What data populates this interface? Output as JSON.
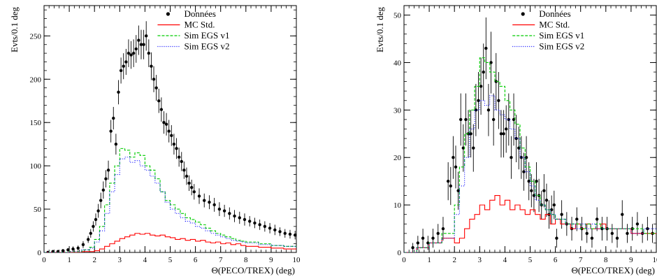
{
  "chart_data": [
    {
      "type": "line",
      "xlabel": "Θ(PECO/TREX) (deg)",
      "ylabel": "Evts/0.1 deg",
      "xlim": [
        0,
        10
      ],
      "ylim": [
        0,
        285
      ],
      "xticks": [
        0,
        1,
        2,
        3,
        4,
        5,
        6,
        7,
        8,
        9,
        10
      ],
      "yticks": [
        0,
        50,
        100,
        150,
        200,
        250
      ],
      "legend": [
        "Données",
        "MC Std.",
        "Sim EGS v1",
        "Sim EGS v2"
      ],
      "legend_position": "top-right",
      "series": [
        {
          "name": "Données",
          "style": "points",
          "x": [
            0.15,
            0.35,
            0.55,
            0.75,
            0.95,
            1.15,
            1.35,
            1.55,
            1.75,
            1.85,
            1.95,
            2.05,
            2.15,
            2.25,
            2.35,
            2.45,
            2.55,
            2.65,
            2.75,
            2.85,
            2.95,
            3.05,
            3.15,
            3.25,
            3.35,
            3.45,
            3.55,
            3.65,
            3.75,
            3.85,
            3.95,
            4.05,
            4.15,
            4.25,
            4.35,
            4.45,
            4.55,
            4.65,
            4.75,
            4.85,
            4.95,
            5.05,
            5.15,
            5.25,
            5.35,
            5.45,
            5.55,
            5.65,
            5.75,
            5.85,
            5.95,
            6.15,
            6.35,
            6.55,
            6.75,
            6.95,
            7.15,
            7.35,
            7.55,
            7.75,
            7.95,
            8.15,
            8.35,
            8.55,
            8.75,
            8.95,
            9.15,
            9.35,
            9.55,
            9.75,
            9.95
          ],
          "y": [
            0,
            1,
            1,
            2,
            3,
            4,
            5,
            9,
            15,
            22,
            30,
            38,
            48,
            60,
            72,
            85,
            95,
            140,
            155,
            125,
            185,
            210,
            215,
            220,
            230,
            228,
            230,
            235,
            245,
            240,
            240,
            250,
            230,
            215,
            200,
            190,
            175,
            165,
            150,
            148,
            140,
            135,
            125,
            120,
            110,
            105,
            95,
            88,
            80,
            75,
            70,
            65,
            60,
            58,
            55,
            50,
            48,
            45,
            42,
            40,
            38,
            36,
            34,
            32,
            30,
            28,
            26,
            24,
            22,
            21,
            20
          ],
          "err": [
            1,
            1,
            1,
            2,
            2,
            3,
            3,
            4,
            4,
            5,
            6,
            7,
            8,
            9,
            10,
            10,
            11,
            13,
            13,
            12,
            14,
            15,
            15,
            15,
            16,
            16,
            16,
            16,
            17,
            17,
            17,
            17,
            16,
            16,
            15,
            15,
            14,
            14,
            13,
            13,
            13,
            12,
            12,
            12,
            11,
            11,
            10,
            10,
            9,
            9,
            9,
            9,
            8,
            8,
            8,
            8,
            7,
            7,
            7,
            7,
            7,
            6,
            6,
            6,
            6,
            6,
            6,
            5,
            5,
            5,
            5
          ]
        },
        {
          "name": "MC Std.",
          "style": "step",
          "color": "#ff0000",
          "x": [
            0,
            0.5,
            1,
            1.5,
            2,
            2.2,
            2.4,
            2.6,
            2.8,
            3,
            3.2,
            3.4,
            3.6,
            3.8,
            4,
            4.2,
            4.4,
            4.6,
            4.8,
            5,
            5.2,
            5.4,
            5.6,
            5.8,
            6,
            6.2,
            6.4,
            6.6,
            6.8,
            7,
            7.2,
            7.4,
            7.6,
            7.8,
            8,
            8.5,
            9,
            9.5,
            10
          ],
          "y": [
            0,
            0,
            0,
            1,
            2,
            4,
            7,
            10,
            13,
            16,
            18,
            20,
            22,
            21,
            22,
            20,
            19,
            20,
            18,
            17,
            15,
            16,
            14,
            15,
            13,
            14,
            12,
            11,
            12,
            10,
            11,
            9,
            10,
            8,
            7,
            6,
            5,
            4,
            4
          ]
        },
        {
          "name": "Sim EGS v1",
          "style": "step",
          "color": "#00cc00",
          "x": [
            0,
            0.5,
            1,
            1.5,
            1.8,
            2,
            2.2,
            2.4,
            2.6,
            2.8,
            3,
            3.2,
            3.4,
            3.6,
            3.8,
            4,
            4.2,
            4.4,
            4.6,
            4.8,
            5,
            5.2,
            5.4,
            5.6,
            5.8,
            6,
            6.2,
            6.4,
            6.6,
            6.8,
            7,
            7.2,
            7.4,
            7.6,
            7.8,
            8,
            8.5,
            9,
            9.5,
            10
          ],
          "y": [
            0,
            0,
            1,
            3,
            6,
            15,
            30,
            55,
            80,
            100,
            120,
            118,
            110,
            115,
            112,
            100,
            95,
            85,
            70,
            60,
            55,
            50,
            45,
            40,
            38,
            35,
            32,
            28,
            25,
            22,
            20,
            18,
            16,
            14,
            13,
            12,
            10,
            8,
            7,
            6
          ]
        },
        {
          "name": "Sim EGS v2",
          "style": "step",
          "color": "#0000ff",
          "x": [
            0,
            0.5,
            1,
            1.5,
            1.8,
            2,
            2.2,
            2.4,
            2.6,
            2.8,
            3,
            3.2,
            3.4,
            3.6,
            3.8,
            4,
            4.2,
            4.4,
            4.6,
            4.8,
            5,
            5.2,
            5.4,
            5.6,
            5.8,
            6,
            6.2,
            6.4,
            6.6,
            6.8,
            7,
            7.2,
            7.4,
            7.6,
            7.8,
            8,
            8.5,
            9,
            9.5,
            10
          ],
          "y": [
            0,
            0,
            1,
            3,
            5,
            12,
            25,
            45,
            70,
            90,
            108,
            110,
            104,
            106,
            100,
            95,
            88,
            80,
            70,
            58,
            50,
            45,
            40,
            36,
            34,
            30,
            28,
            25,
            22,
            20,
            18,
            16,
            14,
            13,
            12,
            11,
            9,
            8,
            7,
            6
          ]
        }
      ]
    },
    {
      "type": "line",
      "xlabel": "Θ(PECO/TREX) (deg)",
      "ylabel": "Evts/0.1 deg",
      "xlim": [
        0,
        10
      ],
      "ylim": [
        0,
        52
      ],
      "xticks": [
        0,
        1,
        2,
        3,
        4,
        5,
        6,
        7,
        8,
        9,
        10
      ],
      "yticks": [
        0,
        10,
        20,
        30,
        40,
        50
      ],
      "legend": [
        "Données",
        "MC Std.",
        "Sim EGS v1",
        "Sim EGS v2"
      ],
      "legend_position": "top-right",
      "series": [
        {
          "name": "Données",
          "style": "points",
          "x": [
            0.35,
            0.55,
            0.75,
            0.95,
            1.15,
            1.35,
            1.55,
            1.75,
            1.85,
            1.95,
            2.05,
            2.15,
            2.25,
            2.35,
            2.45,
            2.55,
            2.65,
            2.75,
            2.85,
            2.95,
            3.05,
            3.15,
            3.25,
            3.35,
            3.45,
            3.55,
            3.65,
            3.75,
            3.85,
            3.95,
            4.05,
            4.15,
            4.25,
            4.35,
            4.45,
            4.55,
            4.65,
            4.75,
            4.85,
            4.95,
            5.05,
            5.15,
            5.25,
            5.35,
            5.45,
            5.55,
            5.65,
            5.75,
            5.85,
            5.95,
            6.05,
            6.25,
            6.45,
            6.65,
            6.85,
            7.05,
            7.25,
            7.45,
            7.65,
            7.85,
            8.05,
            8.25,
            8.45,
            8.65,
            8.85,
            9.05,
            9.25,
            9.45,
            9.65,
            9.85
          ],
          "y": [
            1,
            2,
            3,
            2,
            3,
            4,
            5,
            15,
            14,
            20,
            18,
            13,
            28,
            22,
            28,
            25,
            25,
            22,
            30,
            32,
            35,
            38,
            43,
            30,
            40,
            28,
            36,
            32,
            25,
            25,
            26,
            28,
            20,
            28,
            24,
            22,
            20,
            17,
            20,
            15,
            13,
            12,
            15,
            12,
            10,
            13,
            11,
            8,
            9,
            10,
            3,
            8,
            6,
            5,
            7,
            5,
            4,
            3,
            7,
            5,
            5,
            4,
            3,
            8,
            4,
            5,
            6,
            4,
            5,
            4
          ],
          "err": [
            1,
            1.5,
            2,
            1.5,
            2,
            2,
            2.5,
            4,
            4,
            4.5,
            4.5,
            4,
            5.5,
            5,
            5.5,
            5,
            5,
            5,
            5.5,
            6,
            6,
            6,
            6.5,
            5.5,
            6.5,
            5.5,
            6,
            6,
            5,
            5,
            5,
            5.5,
            4.5,
            5.5,
            5,
            4.5,
            4.5,
            4,
            4.5,
            4,
            3.5,
            3.5,
            4,
            3.5,
            3,
            3.5,
            3.5,
            3,
            3,
            3,
            2,
            3,
            2.5,
            2.5,
            2.5,
            2.5,
            2,
            2,
            2.5,
            2.5,
            2.5,
            2,
            2,
            3,
            2,
            2.5,
            2.5,
            2,
            2.5,
            2
          ]
        },
        {
          "name": "MC Std.",
          "style": "step",
          "color": "#ff0000",
          "x": [
            0,
            0.5,
            1,
            1.5,
            2,
            2.2,
            2.4,
            2.6,
            2.8,
            3,
            3.2,
            3.4,
            3.6,
            3.8,
            4,
            4.2,
            4.4,
            4.6,
            4.8,
            5,
            5.2,
            5.4,
            5.6,
            5.8,
            6,
            6.2,
            6.4,
            6.6,
            6.8,
            7,
            7.2,
            7.4,
            7.6,
            7.8,
            8,
            8.5,
            9,
            9.5,
            10
          ],
          "y": [
            0,
            1,
            2,
            3,
            2,
            3,
            5,
            7,
            8,
            10,
            9,
            11,
            12,
            10,
            11,
            9,
            10,
            9,
            8,
            9,
            8,
            7,
            8,
            6,
            7,
            6,
            6,
            5,
            6,
            5,
            6,
            5,
            5,
            6,
            5,
            5,
            4,
            4,
            4
          ]
        },
        {
          "name": "Sim EGS v1",
          "style": "step",
          "color": "#00cc00",
          "x": [
            0,
            0.5,
            1,
            1.5,
            2,
            2.2,
            2.4,
            2.6,
            2.8,
            3,
            3.2,
            3.4,
            3.6,
            3.8,
            4,
            4.2,
            4.4,
            4.6,
            4.8,
            5,
            5.2,
            5.4,
            5.6,
            5.8,
            6,
            6.2,
            6.4,
            6.6,
            6.8,
            7,
            7.2,
            7.4,
            7.6,
            7.8,
            8,
            8.5,
            9,
            9.5,
            10
          ],
          "y": [
            0,
            1,
            2,
            4,
            10,
            18,
            25,
            30,
            35,
            41,
            40,
            38,
            36,
            35,
            32,
            30,
            27,
            22,
            18,
            15,
            12,
            10,
            9,
            8,
            7,
            7,
            6,
            6,
            6,
            5,
            6,
            5,
            6,
            5,
            5,
            5,
            5,
            4,
            5
          ]
        },
        {
          "name": "Sim EGS v2",
          "style": "step",
          "color": "#0000ff",
          "x": [
            0,
            0.5,
            1,
            1.5,
            2,
            2.2,
            2.4,
            2.6,
            2.8,
            3,
            3.2,
            3.4,
            3.6,
            3.8,
            4,
            4.2,
            4.4,
            4.6,
            4.8,
            5,
            5.2,
            5.4,
            5.6,
            5.8,
            6,
            6.2,
            6.4,
            6.6,
            6.8,
            7,
            7.2,
            7.4,
            7.6,
            7.8,
            8,
            8.5,
            9,
            9.5,
            10
          ],
          "y": [
            0,
            1,
            2,
            3,
            8,
            14,
            20,
            26,
            30,
            32,
            31,
            33,
            30,
            29,
            28,
            26,
            24,
            20,
            17,
            14,
            11,
            10,
            9,
            8,
            7,
            7,
            6,
            6,
            5,
            6,
            5,
            6,
            5,
            5,
            5,
            5,
            4,
            5,
            4
          ]
        }
      ]
    }
  ]
}
